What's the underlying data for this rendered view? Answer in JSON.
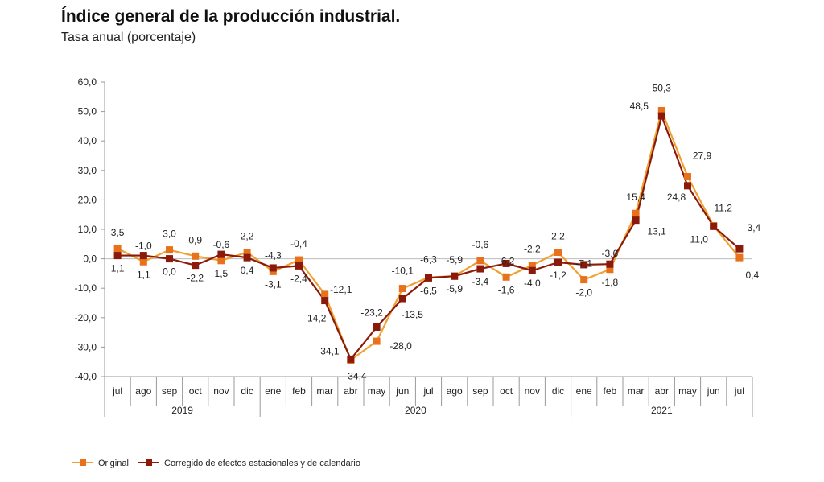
{
  "chart_data": {
    "type": "line",
    "title": "Índice general de la producción industrial.",
    "subtitle": "Tasa anual (porcentaje)",
    "xlabel": "",
    "ylabel": "",
    "ylim": [
      -40,
      60
    ],
    "yticks": [
      "60,0",
      "50,0",
      "40,0",
      "30,0",
      "20,0",
      "10,0",
      "0,0",
      "-10,0",
      "-20,0",
      "-30,0",
      "-40,0"
    ],
    "categories": [
      "jul",
      "ago",
      "sep",
      "oct",
      "nov",
      "dic",
      "ene",
      "feb",
      "mar",
      "abr",
      "may",
      "jun",
      "jul",
      "ago",
      "sep",
      "oct",
      "nov",
      "dic",
      "ene",
      "feb",
      "mar",
      "abr",
      "may",
      "jun",
      "jul"
    ],
    "years": [
      {
        "label": "2019",
        "start": 0,
        "end": 5
      },
      {
        "label": "2020",
        "start": 6,
        "end": 17
      },
      {
        "label": "2021",
        "start": 18,
        "end": 24
      }
    ],
    "series": [
      {
        "name": "Original",
        "color": "#f0a030",
        "marker_color": "#e8721c",
        "values": [
          3.5,
          -1.0,
          3.0,
          0.9,
          -0.6,
          2.2,
          -4.3,
          -0.4,
          -12.1,
          -34.4,
          -28.0,
          -10.1,
          -6.3,
          -5.9,
          -0.6,
          -6.2,
          -2.2,
          2.2,
          -7.1,
          -3.6,
          15.4,
          50.3,
          27.9,
          11.2,
          0.4
        ],
        "labels": [
          "3,5",
          "-1,0",
          "3,0",
          "0,9",
          "-0,6",
          "2,2",
          "-4,3",
          "-0,4",
          "-12,1",
          "-34,4",
          "-28,0",
          "-10,1",
          "-6,3",
          "-5,9",
          "-0,6",
          "-6,2",
          "-2,2",
          "2,2",
          "-7,1",
          "-3,6",
          "15,4",
          "50,3",
          "27,9",
          "11,2",
          "0,4"
        ]
      },
      {
        "name": "Corregido de efectos estacionales y de calendario",
        "color": "#8b1a0a",
        "marker_color": "#8b1a0a",
        "values": [
          1.1,
          1.1,
          0.0,
          -2.2,
          1.5,
          0.4,
          -3.1,
          -2.4,
          -14.2,
          -34.1,
          -23.2,
          -13.5,
          -6.5,
          -5.9,
          -3.4,
          -1.6,
          -4.0,
          -1.2,
          -2.0,
          -1.8,
          13.1,
          48.5,
          24.8,
          11.0,
          3.4
        ],
        "labels": [
          "1,1",
          "1,1",
          "0,0",
          "-2,2",
          "1,5",
          "0,4",
          "-3,1",
          "-2,4",
          "-14,2",
          "-34,1",
          "-23,2",
          "-13,5",
          "-6,5",
          "-5,9",
          "-3,4",
          "-1,6",
          "-4,0",
          "-1,2",
          "-2,0",
          "-1,8",
          "13,1",
          "48,5",
          "24,8",
          "11,0",
          "3,4"
        ]
      }
    ],
    "legend_position": "bottom-left",
    "grid": false
  }
}
